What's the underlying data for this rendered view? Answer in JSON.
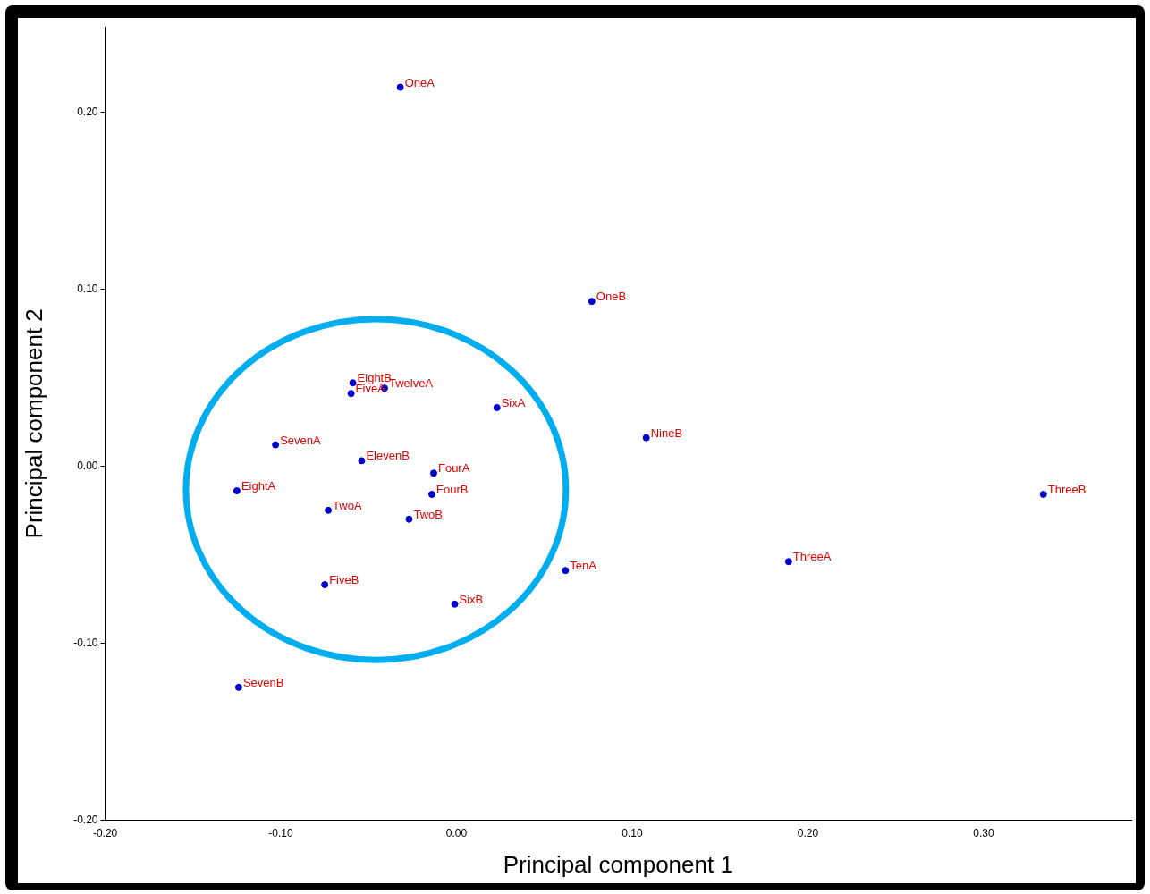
{
  "chart_data": {
    "type": "scatter",
    "xlabel": "Principal component 1",
    "ylabel": "Principal component 2",
    "x": [
      -0.032,
      0.077,
      -0.059,
      -0.041,
      -0.06,
      0.023,
      0.108,
      -0.103,
      -0.054,
      -0.013,
      -0.125,
      -0.014,
      0.334,
      -0.073,
      -0.027,
      0.189,
      0.062,
      -0.075,
      -0.001,
      -0.124
    ],
    "values": [
      0.214,
      0.093,
      0.047,
      0.044,
      0.041,
      0.033,
      0.016,
      0.012,
      0.003,
      -0.004,
      -0.014,
      -0.016,
      -0.016,
      -0.025,
      -0.03,
      -0.054,
      -0.059,
      -0.067,
      -0.078,
      -0.125
    ],
    "color": "#0000cc",
    "marker": "circle",
    "grid": false,
    "legend": false,
    "xlim": [
      -0.2,
      0.384
    ],
    "ylim": [
      -0.2,
      0.248
    ],
    "xticks": [
      {
        "value": -0.2,
        "label": "-0.20"
      },
      {
        "value": -0.1,
        "label": "-0.10"
      },
      {
        "value": 0,
        "label": "0.00"
      },
      {
        "value": 0.1,
        "label": "0.10"
      },
      {
        "value": 0.2,
        "label": "0.20"
      },
      {
        "value": 0.3,
        "label": "0.30"
      }
    ],
    "yticks": [
      {
        "value": -0.2,
        "label": "-0.20"
      },
      {
        "value": -0.1,
        "label": "-0.10"
      },
      {
        "value": 0,
        "label": "0.00"
      },
      {
        "value": 0.1,
        "label": "0.10"
      },
      {
        "value": 0.2,
        "label": "0.20"
      }
    ],
    "annotations": [
      {
        "text": "OneA",
        "x": -0.032,
        "y": 0.214
      },
      {
        "text": "OneB",
        "x": 0.077,
        "y": 0.093
      },
      {
        "text": "EightB",
        "x": -0.059,
        "y": 0.047
      },
      {
        "text": "TwelveA",
        "x": -0.041,
        "y": 0.044
      },
      {
        "text": "FiveA",
        "x": -0.06,
        "y": 0.041
      },
      {
        "text": "SixA",
        "x": 0.023,
        "y": 0.033
      },
      {
        "text": "NineB",
        "x": 0.108,
        "y": 0.016
      },
      {
        "text": "SevenA",
        "x": -0.103,
        "y": 0.012
      },
      {
        "text": "ElevenB",
        "x": -0.054,
        "y": 0.003
      },
      {
        "text": "FourA",
        "x": -0.013,
        "y": -0.004
      },
      {
        "text": "EightA",
        "x": -0.125,
        "y": -0.014
      },
      {
        "text": "FourB",
        "x": -0.014,
        "y": -0.016
      },
      {
        "text": "ThreeB",
        "x": 0.334,
        "y": -0.016
      },
      {
        "text": "TwoA",
        "x": -0.073,
        "y": -0.025
      },
      {
        "text": "TwoB",
        "x": -0.027,
        "y": -0.03
      },
      {
        "text": "ThreeA",
        "x": 0.189,
        "y": -0.054
      },
      {
        "text": "TenA",
        "x": 0.062,
        "y": -0.059
      },
      {
        "text": "FiveB",
        "x": -0.075,
        "y": -0.067
      },
      {
        "text": "SixB",
        "x": -0.001,
        "y": -0.078
      },
      {
        "text": "SevenB",
        "x": -0.124,
        "y": -0.125
      }
    ]
  }
}
